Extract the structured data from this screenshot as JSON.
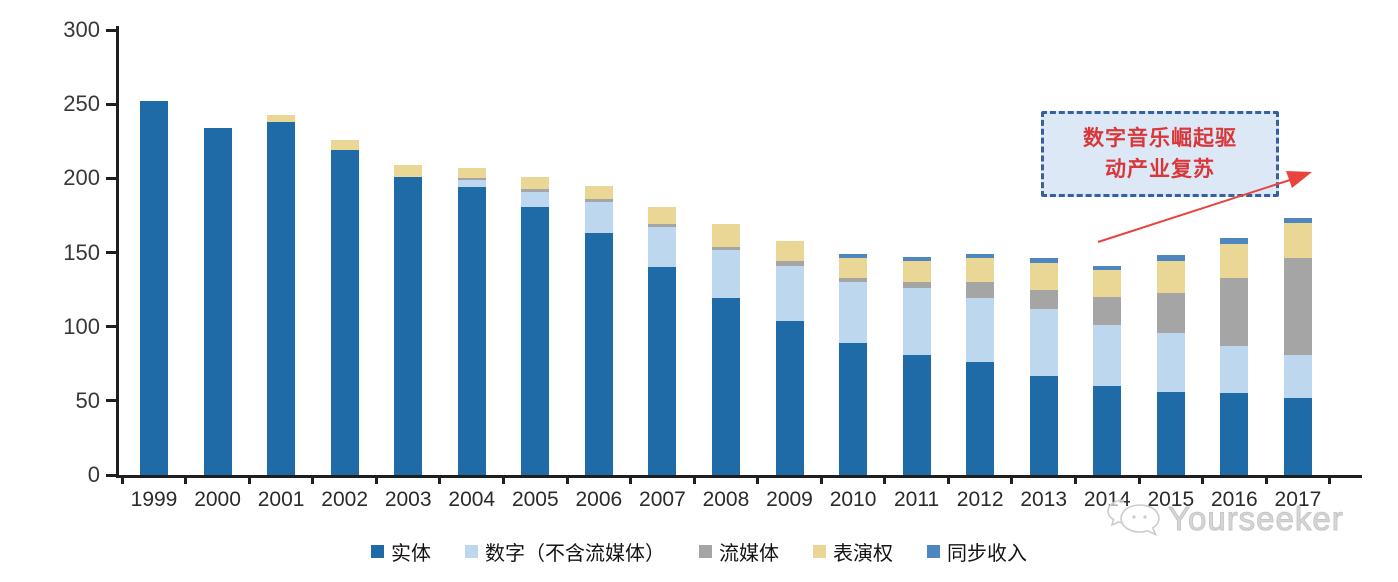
{
  "watermark": {
    "label": "Yourseeker",
    "icon": "chat-bubbles-icon"
  },
  "annotation": {
    "line1": "数字音乐崛起驱",
    "line2": "动产业复苏",
    "full_text": "数字音乐崛起驱动产业复苏"
  },
  "chart_data": {
    "type": "bar",
    "stacked": true,
    "title": "",
    "xlabel": "",
    "ylabel": "",
    "ylim": [
      0,
      300
    ],
    "yticks": [
      0,
      50,
      100,
      150,
      200,
      250,
      300
    ],
    "grid": false,
    "legend_position": "bottom",
    "categories": [
      "1999",
      "2000",
      "2001",
      "2002",
      "2003",
      "2004",
      "2005",
      "2006",
      "2007",
      "2008",
      "2009",
      "2010",
      "2011",
      "2012",
      "2013",
      "2014",
      "2015",
      "2016",
      "2017"
    ],
    "series": [
      {
        "name": "实体",
        "color": "#1E6BA8",
        "values": [
          252,
          234,
          238,
          219,
          201,
          194,
          181,
          163,
          140,
          119,
          104,
          89,
          81,
          76,
          67,
          60,
          56,
          55,
          52
        ]
      },
      {
        "name": "数字（不含流媒体）",
        "color": "#BDD7EE",
        "values": [
          0,
          0,
          0,
          0,
          0,
          5,
          10,
          21,
          27,
          33,
          37,
          41,
          45,
          43,
          45,
          41,
          40,
          32,
          29
        ]
      },
      {
        "name": "流媒体",
        "color": "#A5A5A5",
        "values": [
          0,
          0,
          0,
          0,
          0,
          1,
          2,
          2,
          2,
          2,
          3,
          3,
          4,
          11,
          13,
          19,
          27,
          46,
          65
        ]
      },
      {
        "name": "表演权",
        "color": "#EBD795",
        "values": [
          0,
          0,
          5,
          7,
          8,
          7,
          8,
          9,
          12,
          15,
          14,
          13,
          14,
          16,
          18,
          18,
          21,
          23,
          24
        ]
      },
      {
        "name": "同步收入",
        "color": "#4E86C0",
        "values": [
          0,
          0,
          0,
          0,
          0,
          0,
          0,
          0,
          0,
          0,
          0,
          3,
          3,
          3,
          3,
          3,
          4,
          4,
          3
        ]
      }
    ],
    "totals": [
      252,
      234,
      243,
      226,
      209,
      207,
      201,
      195,
      181,
      169,
      158,
      149,
      147,
      149,
      146,
      141,
      148,
      160,
      173
    ],
    "annotation_target_year": "2017"
  },
  "colors": {
    "axis": "#1f1f1f",
    "tick_label": "#383838",
    "annotation_fill": "#DCE8F6",
    "annotation_border": "#34619F",
    "annotation_text": "#D9383A",
    "arrow": "#E8433F",
    "watermark": "#D6D6D6"
  }
}
